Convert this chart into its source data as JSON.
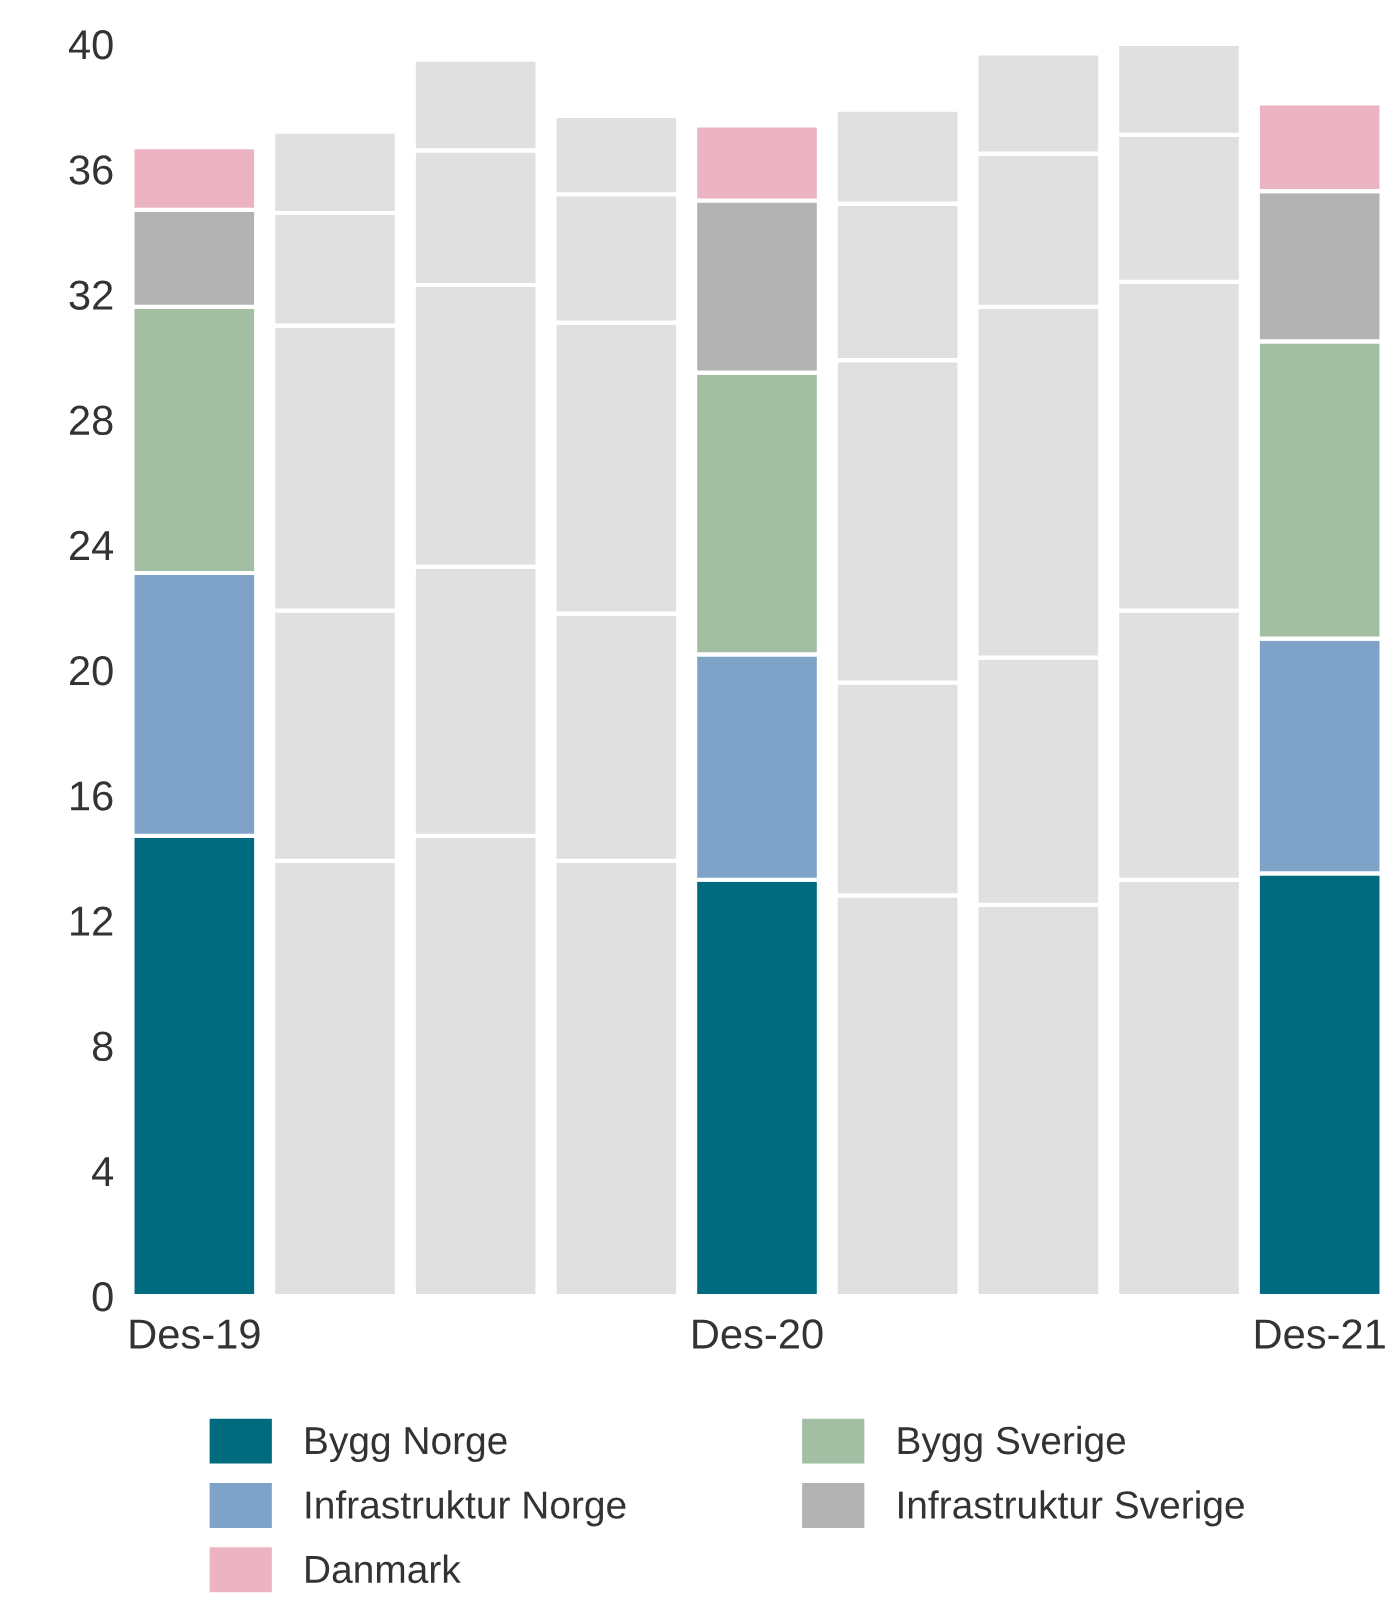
{
  "chart_data": {
    "type": "bar",
    "stacked": true,
    "categories": [
      "Des-19",
      null,
      null,
      null,
      "Des-20",
      null,
      null,
      null,
      "Des-21"
    ],
    "series": [
      {
        "name": "Bygg Norge",
        "color": "#006b7f",
        "colors": [
          "#006b7f",
          "#e0e0e0",
          "#e0e0e0",
          "#e0e0e0",
          "#006b7f",
          "#e0e0e0",
          "#e0e0e0",
          "#e0e0e0",
          "#006b7f"
        ],
        "values": [
          14.7,
          13.9,
          14.7,
          13.9,
          13.3,
          12.8,
          12.5,
          13.3,
          13.5
        ]
      },
      {
        "name": "Infrastruktur Norge",
        "color": "#7fa3c8",
        "colors": [
          "#7fa3c8",
          "#e0e0e0",
          "#e0e0e0",
          "#e0e0e0",
          "#7fa3c8",
          "#e0e0e0",
          "#e0e0e0",
          "#e0e0e0",
          "#7fa3c8"
        ],
        "values": [
          8.4,
          8.0,
          8.6,
          7.9,
          7.2,
          6.8,
          7.9,
          8.6,
          7.5
        ]
      },
      {
        "name": "Bygg Sverige",
        "color": "#a2bea3",
        "colors": [
          "#a2bea3",
          "#e0e0e0",
          "#e0e0e0",
          "#e0e0e0",
          "#a2bea3",
          "#e0e0e0",
          "#e0e0e0",
          "#e0e0e0",
          "#a2bea3"
        ],
        "values": [
          8.5,
          9.1,
          9.0,
          9.3,
          9.0,
          10.3,
          11.2,
          10.5,
          9.5
        ]
      },
      {
        "name": "Infrastruktur Sverige",
        "color": "#b3b3b3",
        "colors": [
          "#b3b3b3",
          "#e0e0e0",
          "#e0e0e0",
          "#e0e0e0",
          "#b3b3b3",
          "#e0e0e0",
          "#e0e0e0",
          "#e0e0e0",
          "#b3b3b3"
        ],
        "values": [
          3.1,
          3.6,
          4.3,
          4.1,
          5.5,
          5.0,
          4.9,
          4.7,
          4.8
        ]
      },
      {
        "name": "Danmark",
        "color": "#ecb4c3",
        "colors": [
          "#ecb4c3",
          "#e0e0e0",
          "#e0e0e0",
          "#e0e0e0",
          "#ecb4c3",
          "#e0e0e0",
          "#e0e0e0",
          "#e0e0e0",
          "#ecb4c3"
        ],
        "values": [
          2.0,
          2.6,
          2.9,
          2.5,
          2.4,
          3.0,
          3.2,
          2.9,
          2.8
        ]
      }
    ],
    "ylim": [
      0,
      40
    ],
    "yticks": [
      0,
      4,
      8,
      12,
      16,
      20,
      24,
      28,
      32,
      36,
      40
    ],
    "grid": false,
    "legend": "bottom"
  }
}
